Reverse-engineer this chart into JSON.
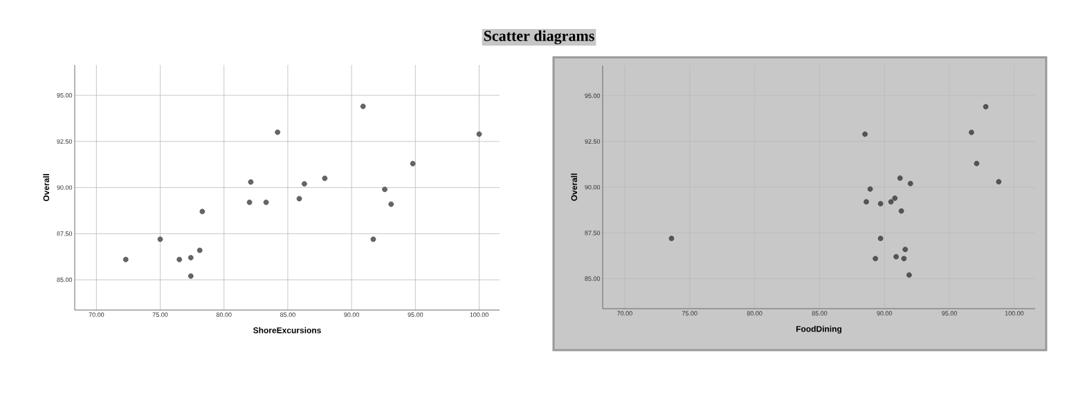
{
  "chart_data": [
    {
      "type": "scatter",
      "title": "Scatter diagrams",
      "xlabel": "ShoreExcursions",
      "ylabel": "Overall",
      "xlim": [
        68.3,
        101.6
      ],
      "ylim": [
        83.36,
        96.65
      ],
      "xticks": [
        {
          "value": 70,
          "label": "70.00"
        },
        {
          "value": 75,
          "label": "75.00"
        },
        {
          "value": 80,
          "label": "80.00"
        },
        {
          "value": 85,
          "label": "85.00"
        },
        {
          "value": 90,
          "label": "90.00"
        },
        {
          "value": 95,
          "label": "95.00"
        },
        {
          "value": 100,
          "label": "100.00"
        }
      ],
      "yticks": [
        {
          "value": 85,
          "label": "85.00"
        },
        {
          "value": 87.5,
          "label": "87.50"
        },
        {
          "value": 90,
          "label": "90.00"
        },
        {
          "value": 92.5,
          "label": "92.50"
        },
        {
          "value": 95,
          "label": "95.00"
        }
      ],
      "grid": true,
      "marker": "circle",
      "series": [
        {
          "color": "#666666",
          "x": [
            72.3,
            75.0,
            76.5,
            77.4,
            77.4,
            78.1,
            78.3,
            82.0,
            82.1,
            83.3,
            84.2,
            85.9,
            86.3,
            87.9,
            90.9,
            91.7,
            92.6,
            93.1,
            94.8,
            100.0
          ],
          "values": [
            86.1,
            87.2,
            86.1,
            86.2,
            85.2,
            86.6,
            88.7,
            89.2,
            90.3,
            89.2,
            93.0,
            89.4,
            90.2,
            90.5,
            94.4,
            87.2,
            89.9,
            89.1,
            91.3,
            92.9
          ]
        }
      ]
    },
    {
      "type": "scatter",
      "xlabel": "FoodDining",
      "ylabel": "Overall",
      "xlim": [
        68.3,
        101.6
      ],
      "ylim": [
        83.36,
        96.65
      ],
      "xticks": [
        {
          "value": 70,
          "label": "70.00"
        },
        {
          "value": 75,
          "label": "75.00"
        },
        {
          "value": 80,
          "label": "80.00"
        },
        {
          "value": 85,
          "label": "85.00"
        },
        {
          "value": 90,
          "label": "90.00"
        },
        {
          "value": 95,
          "label": "95.00"
        },
        {
          "value": 100,
          "label": "100.00"
        }
      ],
      "yticks": [
        {
          "value": 85,
          "label": "85.00"
        },
        {
          "value": 87.5,
          "label": "87.50"
        },
        {
          "value": 90,
          "label": "90.00"
        },
        {
          "value": 92.5,
          "label": "92.50"
        },
        {
          "value": 95,
          "label": "95.00"
        }
      ],
      "grid": true,
      "marker": "circle",
      "series": [
        {
          "color": "#555555",
          "x": [
            73.6,
            88.5,
            88.9,
            88.6,
            89.7,
            89.7,
            89.3,
            90.5,
            90.8,
            91.2,
            91.3,
            92.0,
            90.9,
            91.5,
            91.6,
            91.9,
            96.7,
            97.8,
            97.1,
            98.8
          ],
          "values": [
            87.2,
            92.9,
            89.9,
            89.2,
            89.1,
            87.2,
            86.1,
            89.2,
            89.4,
            90.5,
            88.7,
            90.2,
            86.2,
            86.1,
            86.6,
            85.2,
            93.0,
            94.4,
            91.3,
            90.3
          ]
        }
      ]
    }
  ]
}
